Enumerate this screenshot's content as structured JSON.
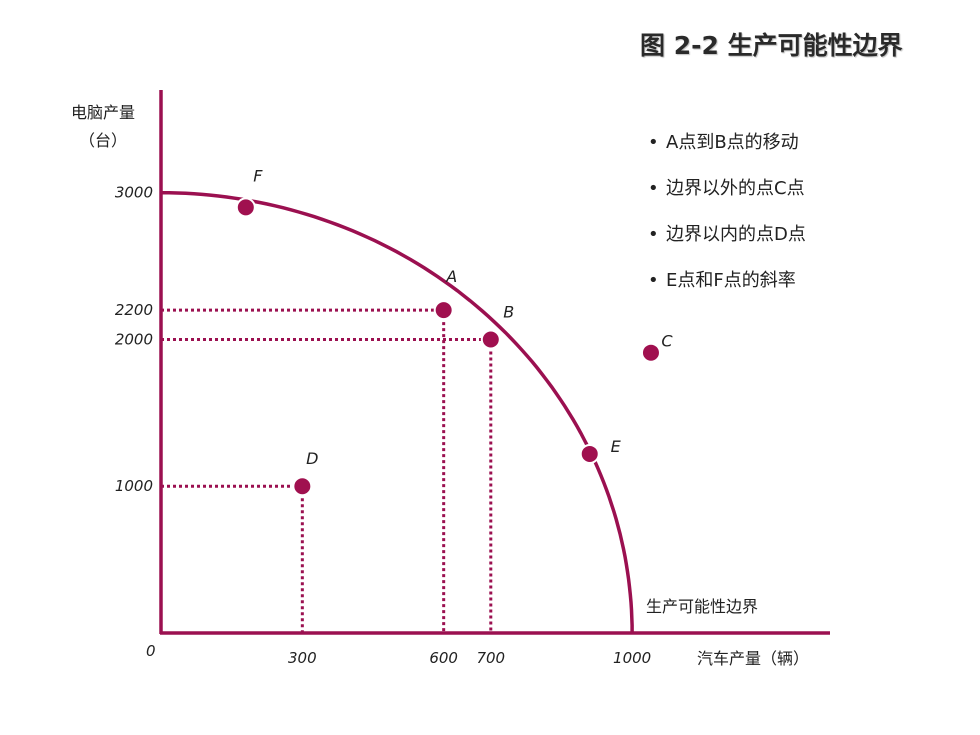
{
  "title": "图 2-2 生产可能性边界",
  "bullets": [
    "A点到B点的移动",
    "边界以外的点C点",
    "边界以内的点D点",
    "E点和F点的斜率"
  ],
  "colors": {
    "curve": "#9b1050",
    "point": "#a0104f",
    "axis": "#9b1050",
    "text": "#222222"
  },
  "chart_data": {
    "type": "scatter",
    "title": "图 2-2 生产可能性边界",
    "xlabel": "汽车产量（辆）",
    "ylabel_line1": "电脑产量",
    "ylabel_line2": "（台）",
    "xlim": [
      0,
      1420
    ],
    "ylim": [
      0,
      3700
    ],
    "origin_label": "0",
    "x_ticks": [
      {
        "value": 300,
        "label": "300"
      },
      {
        "value": 600,
        "label": "600"
      },
      {
        "value": 700,
        "label": "700"
      },
      {
        "value": 1000,
        "label": "1000"
      }
    ],
    "y_ticks": [
      {
        "value": 3000,
        "label": "3000"
      },
      {
        "value": 2200,
        "label": "2200"
      },
      {
        "value": 2000,
        "label": "2000"
      },
      {
        "value": 1000,
        "label": "1000"
      }
    ],
    "frontier": {
      "name": "生产可能性边界",
      "x_intercept": 1000,
      "y_intercept": 3000
    },
    "points": [
      {
        "name": "F",
        "x": 180,
        "y": 2900,
        "guides": false
      },
      {
        "name": "A",
        "x": 600,
        "y": 2200,
        "guides": true
      },
      {
        "name": "B",
        "x": 700,
        "y": 2000,
        "guides": true
      },
      {
        "name": "E",
        "x": 910,
        "y": 1220,
        "guides": false
      },
      {
        "name": "C",
        "x": 1040,
        "y": 1910,
        "guides": false
      },
      {
        "name": "D",
        "x": 300,
        "y": 1000,
        "guides": true
      }
    ]
  }
}
